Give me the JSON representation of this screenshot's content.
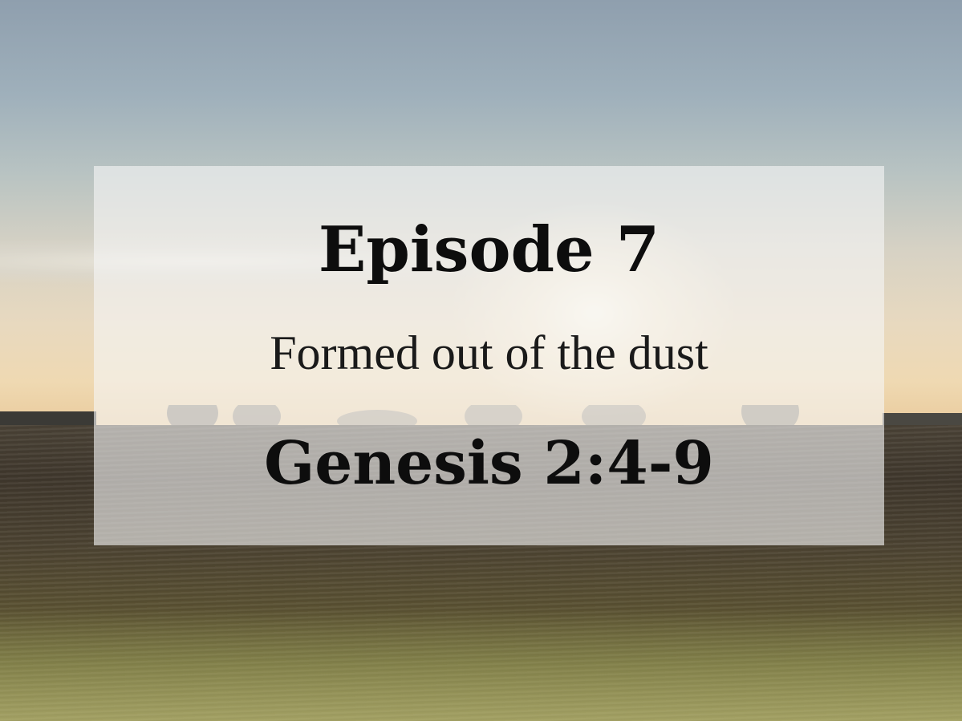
{
  "card": {
    "title": "Episode 7",
    "subtitle": "Formed out of the dust",
    "reference": "Genesis 2:4-9"
  },
  "colors": {
    "overlay": "#f5f5f5",
    "text": "#0d0d0d",
    "sky_top": "#8f9fae",
    "horizon": "#efd9b2",
    "field": "#4a4236"
  }
}
